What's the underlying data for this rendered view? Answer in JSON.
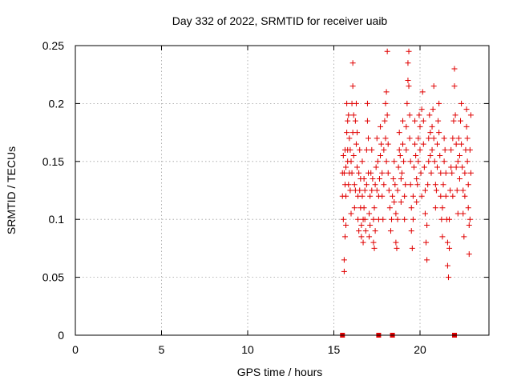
{
  "chart_data": {
    "type": "scatter",
    "title": "Day 332 of 2022, SRMTID for receiver uaib",
    "xlabel": "GPS time / hours",
    "ylabel": "SRMTID / TECUs",
    "xlim": [
      0,
      24
    ],
    "ylim": [
      0,
      0.25
    ],
    "xticks": [
      0,
      5,
      10,
      15,
      20
    ],
    "yticks": [
      0,
      0.05,
      0.1,
      0.15,
      0.2,
      0.25
    ],
    "xtick_labels": [
      "0",
      "5",
      "10",
      "15",
      "20"
    ],
    "ytick_labels": [
      "0",
      "0.05",
      "0.1",
      "0.15",
      "0.2",
      "0.25"
    ],
    "grid": true,
    "marker": "+",
    "color": "#e00000",
    "zero_markers_x": [
      15.5,
      17.6,
      18.4,
      22.0
    ],
    "series": [
      {
        "name": "SRMTID",
        "points": [
          [
            15.5,
            0.14
          ],
          [
            15.5,
            0.12
          ],
          [
            15.55,
            0.155
          ],
          [
            15.55,
            0.1
          ],
          [
            15.6,
            0.065
          ],
          [
            15.6,
            0.055
          ],
          [
            15.6,
            0.14
          ],
          [
            15.65,
            0.085
          ],
          [
            15.65,
            0.13
          ],
          [
            15.65,
            0.16
          ],
          [
            15.7,
            0.12
          ],
          [
            15.7,
            0.095
          ],
          [
            15.7,
            0.145
          ],
          [
            15.75,
            0.175
          ],
          [
            15.75,
            0.2
          ],
          [
            15.8,
            0.185
          ],
          [
            15.8,
            0.15
          ],
          [
            15.8,
            0.16
          ],
          [
            15.85,
            0.13
          ],
          [
            15.85,
            0.19
          ],
          [
            15.9,
            0.17
          ],
          [
            15.9,
            0.14
          ],
          [
            15.95,
            0.16
          ],
          [
            15.95,
            0.125
          ],
          [
            16.0,
            0.15
          ],
          [
            16.0,
            0.105
          ],
          [
            16.05,
            0.14
          ],
          [
            16.05,
            0.2
          ],
          [
            16.1,
            0.175
          ],
          [
            16.1,
            0.215
          ],
          [
            16.1,
            0.235
          ],
          [
            16.15,
            0.19
          ],
          [
            16.15,
            0.155
          ],
          [
            16.2,
            0.13
          ],
          [
            16.2,
            0.11
          ],
          [
            16.25,
            0.125
          ],
          [
            16.25,
            0.185
          ],
          [
            16.3,
            0.165
          ],
          [
            16.3,
            0.2
          ],
          [
            16.35,
            0.175
          ],
          [
            16.35,
            0.145
          ],
          [
            16.4,
            0.12
          ],
          [
            16.4,
            0.1
          ],
          [
            16.45,
            0.09
          ],
          [
            16.45,
            0.14
          ],
          [
            16.5,
            0.16
          ],
          [
            16.5,
            0.125
          ],
          [
            16.55,
            0.135
          ],
          [
            16.55,
            0.11
          ],
          [
            16.6,
            0.095
          ],
          [
            16.6,
            0.085
          ],
          [
            16.65,
            0.12
          ],
          [
            16.65,
            0.15
          ],
          [
            16.7,
            0.1
          ],
          [
            16.7,
            0.08
          ],
          [
            16.75,
            0.11
          ],
          [
            16.75,
            0.135
          ],
          [
            16.8,
            0.125
          ],
          [
            16.8,
            0.1
          ],
          [
            16.85,
            0.09
          ],
          [
            16.9,
            0.13
          ],
          [
            16.9,
            0.16
          ],
          [
            16.95,
            0.185
          ],
          [
            16.95,
            0.2
          ],
          [
            17.0,
            0.17
          ],
          [
            17.0,
            0.14
          ],
          [
            17.05,
            0.105
          ],
          [
            17.05,
            0.085
          ],
          [
            17.1,
            0.095
          ],
          [
            17.1,
            0.12
          ],
          [
            17.15,
            0.14
          ],
          [
            17.2,
            0.125
          ],
          [
            17.2,
            0.16
          ],
          [
            17.25,
            0.135
          ],
          [
            17.3,
            0.1
          ],
          [
            17.3,
            0.08
          ],
          [
            17.35,
            0.075
          ],
          [
            17.35,
            0.11
          ],
          [
            17.4,
            0.09
          ],
          [
            17.4,
            0.13
          ],
          [
            17.45,
            0.145
          ],
          [
            17.5,
            0.125
          ],
          [
            17.5,
            0.17
          ],
          [
            17.55,
            0.15
          ],
          [
            17.6,
            0.12
          ],
          [
            17.6,
            0.1
          ],
          [
            17.65,
            0.135
          ],
          [
            17.7,
            0.155
          ],
          [
            17.7,
            0.18
          ],
          [
            17.75,
            0.165
          ],
          [
            17.8,
            0.14
          ],
          [
            17.8,
            0.12
          ],
          [
            17.85,
            0.1
          ],
          [
            17.9,
            0.13
          ],
          [
            17.9,
            0.16
          ],
          [
            17.95,
            0.185
          ],
          [
            18.0,
            0.2
          ],
          [
            18.0,
            0.17
          ],
          [
            18.05,
            0.15
          ],
          [
            18.05,
            0.21
          ],
          [
            18.1,
            0.245
          ],
          [
            18.1,
            0.19
          ],
          [
            18.15,
            0.165
          ],
          [
            18.15,
            0.14
          ],
          [
            18.2,
            0.125
          ],
          [
            18.25,
            0.11
          ],
          [
            18.3,
            0.09
          ],
          [
            18.35,
            0.1
          ],
          [
            18.4,
            0.12
          ],
          [
            18.45,
            0.135
          ],
          [
            18.5,
            0.115
          ],
          [
            18.5,
            0.15
          ],
          [
            18.55,
            0.13
          ],
          [
            18.6,
            0.105
          ],
          [
            18.6,
            0.08
          ],
          [
            18.65,
            0.075
          ],
          [
            18.7,
            0.1
          ],
          [
            18.7,
            0.125
          ],
          [
            18.75,
            0.145
          ],
          [
            18.8,
            0.16
          ],
          [
            18.8,
            0.175
          ],
          [
            18.85,
            0.155
          ],
          [
            18.9,
            0.135
          ],
          [
            18.9,
            0.115
          ],
          [
            18.95,
            0.14
          ],
          [
            19.0,
            0.165
          ],
          [
            19.0,
            0.185
          ],
          [
            19.05,
            0.15
          ],
          [
            19.1,
            0.12
          ],
          [
            19.1,
            0.1
          ],
          [
            19.15,
            0.13
          ],
          [
            19.2,
            0.16
          ],
          [
            19.2,
            0.18
          ],
          [
            19.25,
            0.2
          ],
          [
            19.3,
            0.22
          ],
          [
            19.3,
            0.235
          ],
          [
            19.35,
            0.245
          ],
          [
            19.35,
            0.215
          ],
          [
            19.4,
            0.19
          ],
          [
            19.4,
            0.17
          ],
          [
            19.45,
            0.15
          ],
          [
            19.45,
            0.13
          ],
          [
            19.5,
            0.11
          ],
          [
            19.5,
            0.09
          ],
          [
            19.55,
            0.075
          ],
          [
            19.6,
            0.1
          ],
          [
            19.6,
            0.12
          ],
          [
            19.65,
            0.145
          ],
          [
            19.7,
            0.165
          ],
          [
            19.7,
            0.185
          ],
          [
            19.75,
            0.155
          ],
          [
            19.8,
            0.135
          ],
          [
            19.8,
            0.115
          ],
          [
            19.85,
            0.13
          ],
          [
            19.9,
            0.15
          ],
          [
            19.9,
            0.17
          ],
          [
            19.95,
            0.19
          ],
          [
            20.0,
            0.18
          ],
          [
            20.0,
            0.16
          ],
          [
            20.05,
            0.14
          ],
          [
            20.1,
            0.12
          ],
          [
            20.1,
            0.195
          ],
          [
            20.15,
            0.21
          ],
          [
            20.2,
            0.185
          ],
          [
            20.2,
            0.165
          ],
          [
            20.25,
            0.145
          ],
          [
            20.3,
            0.125
          ],
          [
            20.3,
            0.105
          ],
          [
            20.35,
            0.08
          ],
          [
            20.4,
            0.065
          ],
          [
            20.4,
            0.095
          ],
          [
            20.45,
            0.13
          ],
          [
            20.5,
            0.15
          ],
          [
            20.5,
            0.17
          ],
          [
            20.55,
            0.19
          ],
          [
            20.6,
            0.175
          ],
          [
            20.6,
            0.155
          ],
          [
            20.65,
            0.14
          ],
          [
            20.7,
            0.16
          ],
          [
            20.7,
            0.18
          ],
          [
            20.75,
            0.195
          ],
          [
            20.8,
            0.215
          ],
          [
            20.8,
            0.17
          ],
          [
            20.85,
            0.15
          ],
          [
            20.9,
            0.13
          ],
          [
            20.9,
            0.11
          ],
          [
            20.95,
            0.125
          ],
          [
            21.0,
            0.145
          ],
          [
            21.0,
            0.165
          ],
          [
            21.05,
            0.185
          ],
          [
            21.1,
            0.2
          ],
          [
            21.1,
            0.175
          ],
          [
            21.15,
            0.155
          ],
          [
            21.2,
            0.14
          ],
          [
            21.2,
            0.12
          ],
          [
            21.25,
            0.1
          ],
          [
            21.3,
            0.085
          ],
          [
            21.3,
            0.11
          ],
          [
            21.35,
            0.13
          ],
          [
            21.4,
            0.15
          ],
          [
            21.4,
            0.17
          ],
          [
            21.45,
            0.16
          ],
          [
            21.5,
            0.14
          ],
          [
            21.5,
            0.12
          ],
          [
            21.55,
            0.1
          ],
          [
            21.6,
            0.08
          ],
          [
            21.6,
            0.06
          ],
          [
            21.65,
            0.05
          ],
          [
            21.7,
            0.075
          ],
          [
            21.7,
            0.1
          ],
          [
            21.75,
            0.125
          ],
          [
            21.8,
            0.145
          ],
          [
            21.8,
            0.16
          ],
          [
            21.85,
            0.14
          ],
          [
            21.9,
            0.12
          ],
          [
            21.9,
            0.17
          ],
          [
            21.95,
            0.185
          ],
          [
            22.0,
            0.23
          ],
          [
            22.0,
            0.215
          ],
          [
            22.05,
            0.19
          ],
          [
            22.1,
            0.165
          ],
          [
            22.1,
            0.145
          ],
          [
            22.15,
            0.125
          ],
          [
            22.2,
            0.105
          ],
          [
            22.2,
            0.15
          ],
          [
            22.25,
            0.17
          ],
          [
            22.3,
            0.155
          ],
          [
            22.3,
            0.135
          ],
          [
            22.35,
            0.185
          ],
          [
            22.4,
            0.2
          ],
          [
            22.4,
            0.165
          ],
          [
            22.45,
            0.145
          ],
          [
            22.5,
            0.125
          ],
          [
            22.5,
            0.105
          ],
          [
            22.55,
            0.085
          ],
          [
            22.6,
            0.12
          ],
          [
            22.6,
            0.14
          ],
          [
            22.65,
            0.16
          ],
          [
            22.7,
            0.18
          ],
          [
            22.7,
            0.195
          ],
          [
            22.75,
            0.17
          ],
          [
            22.75,
            0.15
          ],
          [
            22.8,
            0.13
          ],
          [
            22.8,
            0.11
          ],
          [
            22.85,
            0.095
          ],
          [
            22.85,
            0.07
          ],
          [
            22.9,
            0.1
          ],
          [
            22.9,
            0.16
          ],
          [
            22.95,
            0.19
          ],
          [
            22.95,
            0.14
          ]
        ]
      }
    ]
  }
}
